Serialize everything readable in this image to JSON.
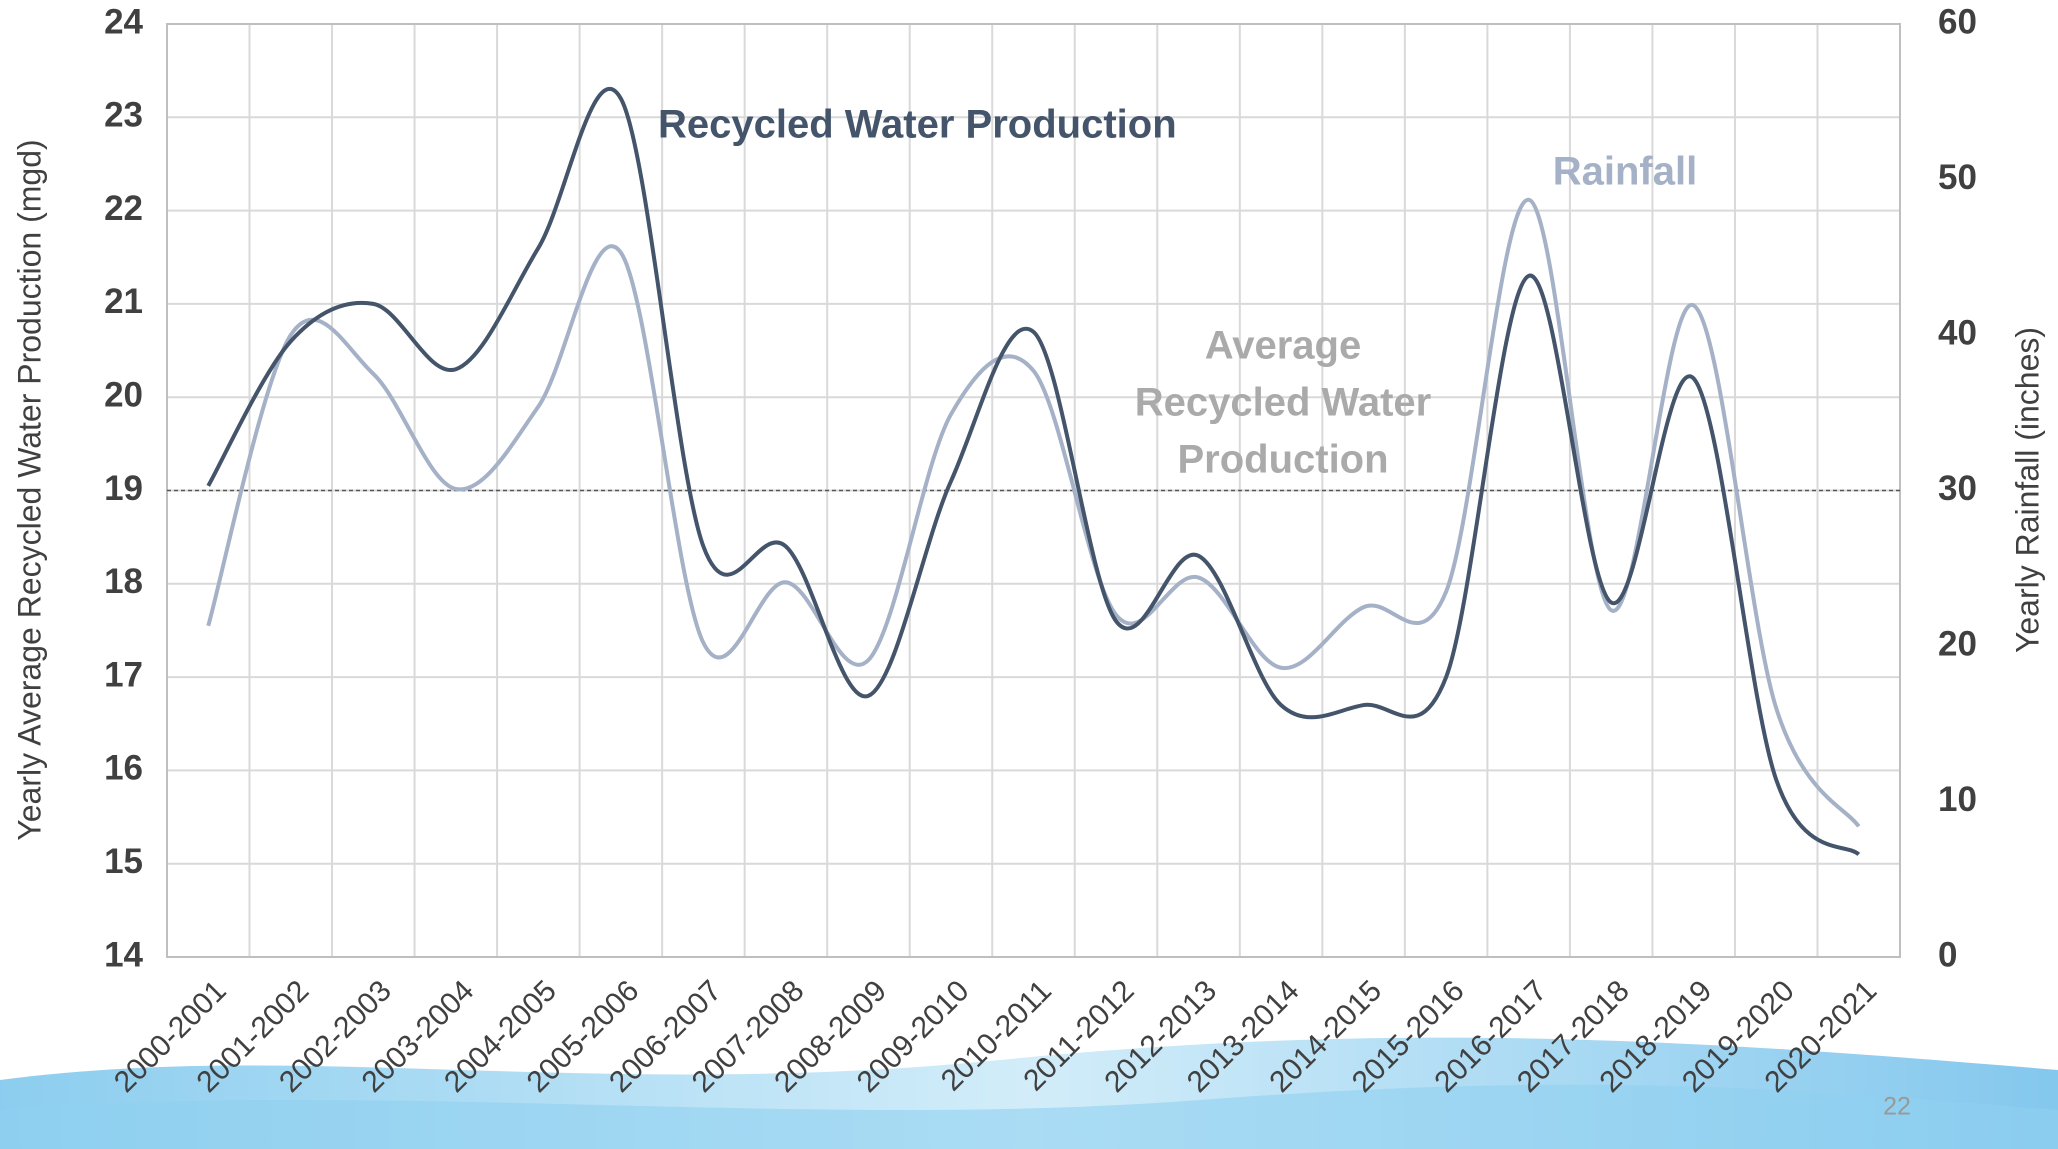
{
  "chart_data": {
    "type": "line",
    "categories": [
      "2000-2001",
      "2001-2002",
      "2002-2003",
      "2003-2004",
      "2004-2005",
      "2005-2006",
      "2006-2007",
      "2007-2008",
      "2008-2009",
      "2009-2010",
      "2010-2011",
      "2011-2012",
      "2012-2013",
      "2013-2014",
      "2014-2015",
      "2015-2016",
      "2016-2017",
      "2017-2018",
      "2018-2019",
      "2019-2020",
      "2020-2021"
    ],
    "series": [
      {
        "name": "Recycled Water Production",
        "color": "#44546a",
        "values": [
          19.05,
          20.6,
          21.0,
          20.3,
          21.6,
          23.2,
          18.4,
          18.4,
          16.8,
          19.1,
          20.7,
          17.6,
          18.3,
          16.7,
          16.7,
          17.0,
          21.3,
          17.8,
          20.2,
          15.9,
          15.1
        ]
      },
      {
        "name": "Rainfall",
        "color": "#a5b1c6",
        "axis": "y2",
        "values": [
          21.3,
          40,
          37.5,
          30.1,
          35.4,
          45.3,
          20.2,
          24.1,
          19.1,
          34.9,
          37.7,
          22,
          24.4,
          18.6,
          22.5,
          23.5,
          48.7,
          22.3,
          41.9,
          16,
          8.4
        ]
      }
    ],
    "average_line": 19,
    "average_label": [
      "Average",
      "Recycled Water",
      "Production"
    ],
    "ylabel": "Yearly Average Recycled Water Production (mgd)",
    "y2label": "Yearly Rainfall (inches)",
    "ylim": [
      14,
      24
    ],
    "yticks": [
      14,
      15,
      16,
      17,
      18,
      19,
      20,
      21,
      22,
      23,
      24
    ],
    "y2lim": [
      0,
      60
    ],
    "y2ticks": [
      0,
      10,
      20,
      30,
      40,
      50,
      60
    ],
    "grid": true
  },
  "page_number": "22"
}
